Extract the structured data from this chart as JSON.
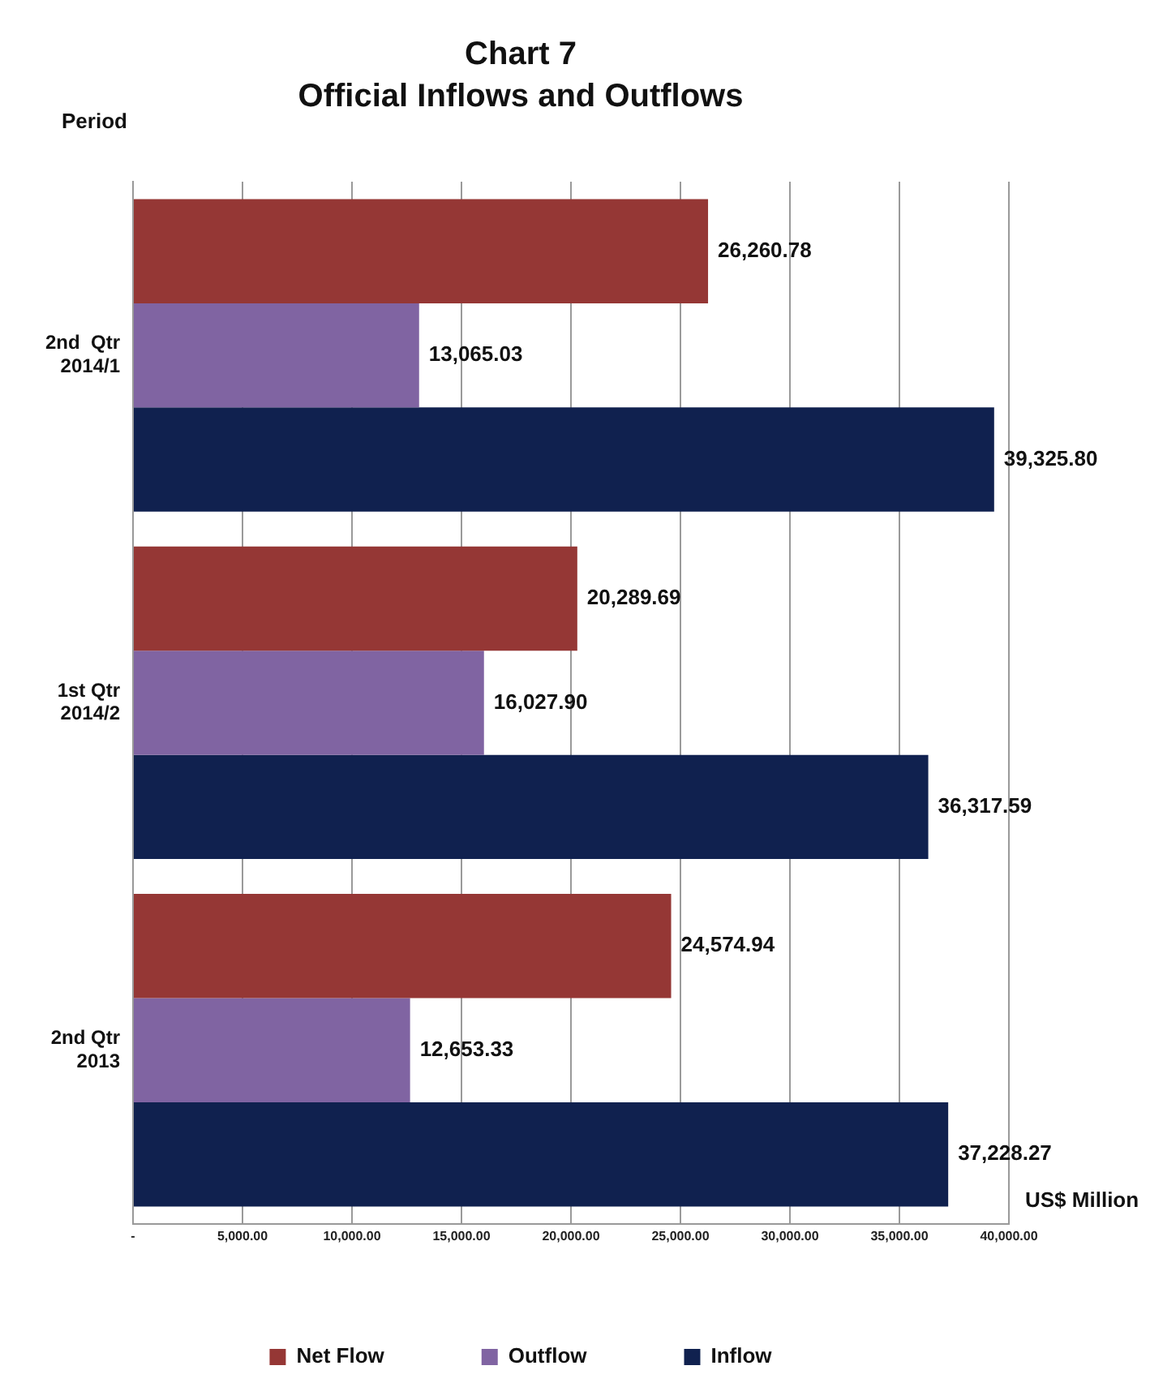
{
  "chart_data": {
    "type": "bar",
    "orientation": "horizontal",
    "title": "Chart 7",
    "subtitle": "Official Inflows and Outflows",
    "ylabel": "Period",
    "xlabel": "US$ Million",
    "categories": [
      "2nd  Qtr 2014/1",
      "1st Qtr 2014/2",
      "2nd Qtr 2013"
    ],
    "series": [
      {
        "name": "Net Flow",
        "color": "#953735",
        "values": [
          26260.78,
          20289.69,
          24574.94
        ],
        "value_labels": [
          "26,260.78",
          "20,289.69",
          "24,574.94"
        ]
      },
      {
        "name": "Outflow",
        "color": "#8064a2",
        "values": [
          13065.03,
          16027.9,
          12653.33
        ],
        "value_labels": [
          "13,065.03",
          "16,027.90",
          "12,653.33"
        ]
      },
      {
        "name": "Inflow",
        "color": "#10214f",
        "values": [
          39325.8,
          36317.59,
          37228.27
        ],
        "value_labels": [
          "39,325.80",
          "36,317.59",
          "37,228.27"
        ]
      }
    ],
    "xlim": [
      0,
      40000
    ],
    "xticks": [
      {
        "value": 0,
        "label": "-"
      },
      {
        "value": 5000,
        "label": "5,000.00"
      },
      {
        "value": 10000,
        "label": "10,000.00"
      },
      {
        "value": 15000,
        "label": "15,000.00"
      },
      {
        "value": 20000,
        "label": "20,000.00"
      },
      {
        "value": 25000,
        "label": "25,000.00"
      },
      {
        "value": 30000,
        "label": "30,000.00"
      },
      {
        "value": 35000,
        "label": "35,000.00"
      },
      {
        "value": 40000,
        "label": "40,000.00"
      }
    ],
    "grid": "x",
    "legend": "bottom"
  }
}
